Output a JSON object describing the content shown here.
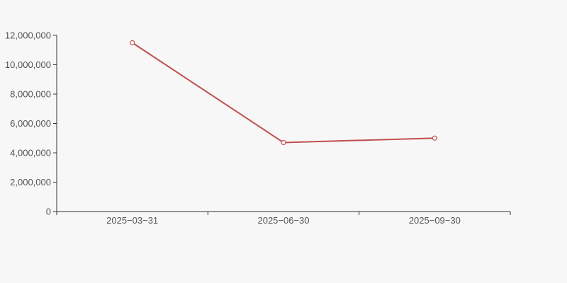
{
  "chart_data": {
    "type": "line",
    "categories": [
      "2025−03−31",
      "2025−06−30",
      "2025−09−30"
    ],
    "series": [
      {
        "name": "value",
        "values": [
          11500000,
          4700000,
          5000000
        ]
      }
    ],
    "title": "",
    "xlabel": "",
    "ylabel": "",
    "ylim": [
      0,
      12000000
    ],
    "y_tick_step": 2000000,
    "y_tick_labels": [
      "0",
      "2,000,000",
      "4,000,000",
      "6,000,000",
      "8,000,000",
      "10,000,000",
      "12,000,000"
    ],
    "grid": false,
    "legend": false,
    "colors": {
      "background": "#f7f7f7",
      "line": "#c0504d",
      "marker_fill": "#ffffff",
      "marker_stroke": "#c0504d",
      "axis": "#333333",
      "label": "#545454"
    },
    "marker": "hollow-circle"
  }
}
